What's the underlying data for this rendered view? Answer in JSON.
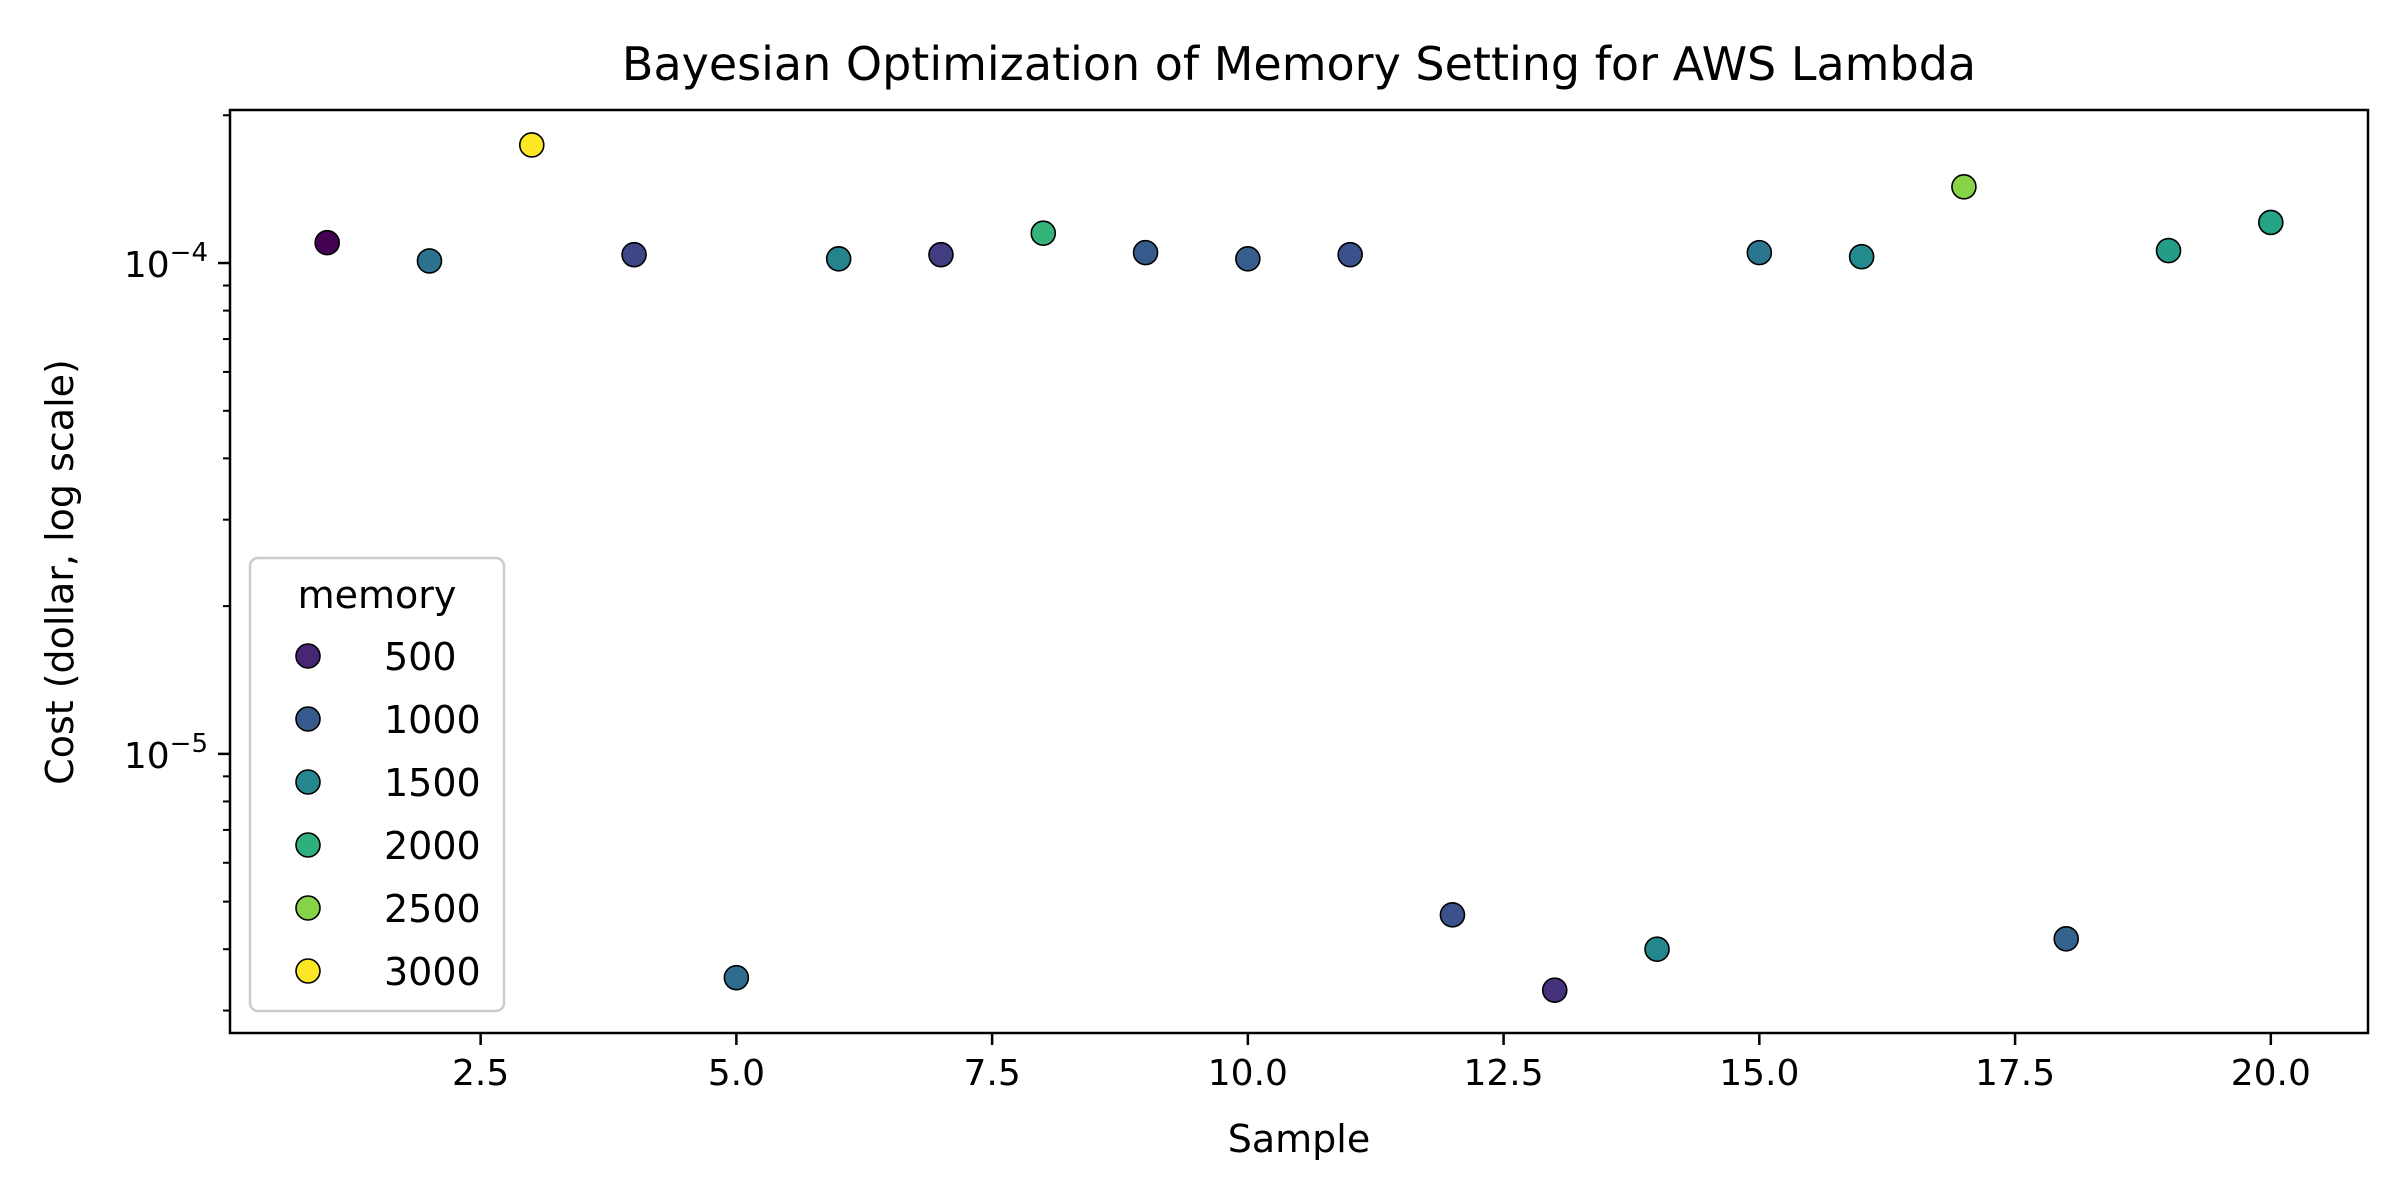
{
  "chart_data": {
    "type": "scatter",
    "title": "Bayesian Optimization of Memory Setting for AWS Lambda",
    "xlabel": "Sample",
    "ylabel": "Cost (dollar, log scale)",
    "x_scale": "linear",
    "y_scale": "log",
    "xlim": [
      0.05,
      20.95
    ],
    "ylim": [
      2.7e-06,
      0.000205
    ],
    "x_ticks": [
      2.5,
      5.0,
      7.5,
      10.0,
      12.5,
      15.0,
      17.5,
      20.0
    ],
    "x_tick_labels": [
      "2.5",
      "5.0",
      "7.5",
      "10.0",
      "12.5",
      "15.0",
      "17.5",
      "20.0"
    ],
    "y_major_ticks": [
      1e-05,
      0.0001
    ],
    "y_major_tick_labels": [
      {
        "base": "10",
        "exponent": "−5"
      },
      {
        "base": "10",
        "exponent": "−4"
      }
    ],
    "grid": false,
    "colormap": "viridis",
    "color_range": [
      200,
      3008
    ],
    "legend": {
      "title": "memory",
      "placement": "lower-left",
      "entries": [
        {
          "label": "500",
          "value": 500
        },
        {
          "label": "1000",
          "value": 1000
        },
        {
          "label": "1500",
          "value": 1500
        },
        {
          "label": "2000",
          "value": 2000
        },
        {
          "label": "2500",
          "value": 2500
        },
        {
          "label": "3000",
          "value": 3000
        }
      ]
    },
    "points": [
      {
        "x": 1,
        "y": 0.00011,
        "memory": 200
      },
      {
        "x": 2,
        "y": 0.000101,
        "memory": 1250
      },
      {
        "x": 3,
        "y": 0.000174,
        "memory": 3008
      },
      {
        "x": 4,
        "y": 0.000104,
        "memory": 800
      },
      {
        "x": 5,
        "y": 3.5e-06,
        "memory": 1200
      },
      {
        "x": 6,
        "y": 0.000102,
        "memory": 1450
      },
      {
        "x": 7,
        "y": 0.000104,
        "memory": 700
      },
      {
        "x": 8,
        "y": 0.000115,
        "memory": 2050
      },
      {
        "x": 9,
        "y": 0.000105,
        "memory": 1000
      },
      {
        "x": 10,
        "y": 0.000102,
        "memory": 1050
      },
      {
        "x": 11,
        "y": 0.000104,
        "memory": 900
      },
      {
        "x": 12,
        "y": 4.7e-06,
        "memory": 900
      },
      {
        "x": 13,
        "y": 3.3e-06,
        "memory": 600
      },
      {
        "x": 14,
        "y": 4e-06,
        "memory": 1500
      },
      {
        "x": 15,
        "y": 0.000105,
        "memory": 1300
      },
      {
        "x": 16,
        "y": 0.000103,
        "memory": 1550
      },
      {
        "x": 17,
        "y": 0.000143,
        "memory": 2500
      },
      {
        "x": 18,
        "y": 4.2e-06,
        "memory": 1100
      },
      {
        "x": 19,
        "y": 0.000106,
        "memory": 1750
      },
      {
        "x": 20,
        "y": 0.000121,
        "memory": 1850
      }
    ]
  }
}
